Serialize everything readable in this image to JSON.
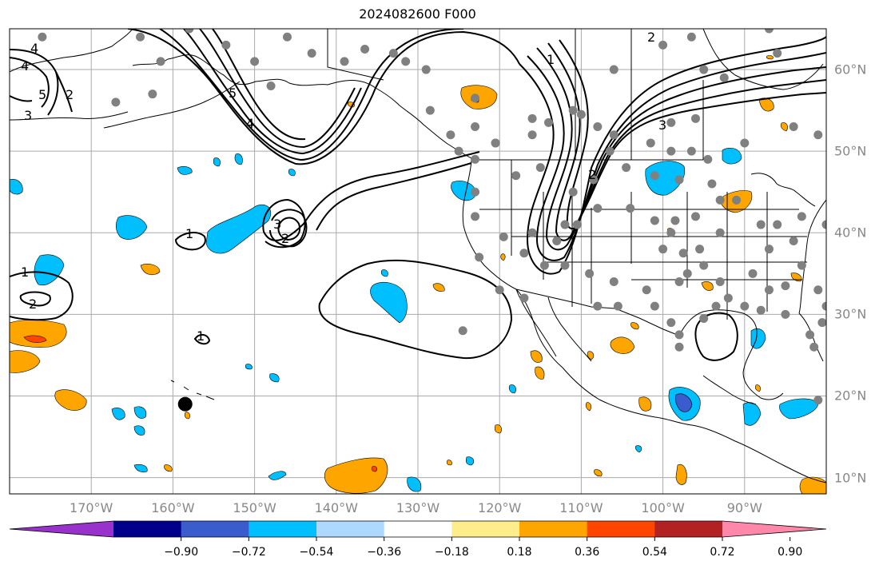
{
  "title": "2024082600 F000",
  "map": {
    "lon_range": [
      -180,
      -80
    ],
    "lat_range": [
      8,
      65
    ],
    "gridlines": true,
    "land_color": "#ffffff",
    "ocean_color": "#ffffff",
    "coastline_color": "#000000"
  },
  "lon_ticks": [
    {
      "lon": -170,
      "label": "170°W"
    },
    {
      "lon": -160,
      "label": "160°W"
    },
    {
      "lon": -150,
      "label": "150°W"
    },
    {
      "lon": -140,
      "label": "140°W"
    },
    {
      "lon": -130,
      "label": "130°W"
    },
    {
      "lon": -120,
      "label": "120°W"
    },
    {
      "lon": -110,
      "label": "110°W"
    },
    {
      "lon": -100,
      "label": "100°W"
    },
    {
      "lon": -90,
      "label": "90°W"
    }
  ],
  "lat_ticks": [
    {
      "lat": 10,
      "label": "10°N"
    },
    {
      "lat": 20,
      "label": "20°N"
    },
    {
      "lat": 30,
      "label": "30°N"
    },
    {
      "lat": 40,
      "label": "40°N"
    },
    {
      "lat": 50,
      "label": "50°N"
    },
    {
      "lat": 60,
      "label": "60°N"
    }
  ],
  "colorbar": {
    "colors": [
      "#9932cc",
      "#00008b",
      "#3a5ccc",
      "#00bfff",
      "#add8ff",
      "#ffffff",
      "#ffec8b",
      "#ffa500",
      "#ff4500",
      "#b22222",
      "#ff88aa"
    ],
    "labels": [
      "−0.90",
      "−0.72",
      "−0.54",
      "−0.36",
      "−0.18",
      "0.18",
      "0.36",
      "0.54",
      "0.72",
      "0.90"
    ],
    "values": [
      -0.9,
      -0.72,
      -0.54,
      -0.36,
      -0.18,
      0.18,
      0.36,
      0.54,
      0.72,
      0.9
    ],
    "extend": "both"
  },
  "fill_colors": {
    "orange": "#ffa500",
    "red": "#ff4500",
    "cyan": "#00bfff",
    "blue": "#3a5ccc"
  },
  "contour_labels": [
    "4",
    "4",
    "5",
    "3",
    "2",
    "5",
    "4",
    "3",
    "2",
    "1",
    "3",
    "2",
    "1",
    "1",
    "2",
    "1",
    "2"
  ],
  "stations": [
    [
      -176,
      64
    ],
    [
      -164,
      64
    ],
    [
      -161.5,
      61
    ],
    [
      -158,
      65
    ],
    [
      -162.5,
      57
    ],
    [
      -167,
      56
    ],
    [
      -153.5,
      63
    ],
    [
      -150,
      61
    ],
    [
      -146,
      64
    ],
    [
      -143,
      62
    ],
    [
      -148,
      58
    ],
    [
      -139,
      61
    ],
    [
      -136.5,
      62.5
    ],
    [
      -133,
      62
    ],
    [
      -131.5,
      61
    ],
    [
      -129,
      60
    ],
    [
      -128.5,
      55
    ],
    [
      -126,
      52
    ],
    [
      -125,
      50
    ],
    [
      -123,
      56.5
    ],
    [
      -123,
      53
    ],
    [
      -123,
      49
    ],
    [
      -120.5,
      51
    ],
    [
      -116,
      52
    ],
    [
      -115,
      48
    ],
    [
      -118,
      47
    ],
    [
      -120.5,
      51
    ],
    [
      -116,
      54
    ],
    [
      -114,
      53.5
    ],
    [
      -111,
      55
    ],
    [
      -110,
      54.5
    ],
    [
      -108,
      53
    ],
    [
      -106,
      52
    ],
    [
      -106,
      60
    ],
    [
      -100,
      63
    ],
    [
      -96.5,
      64
    ],
    [
      -87,
      65
    ],
    [
      -86,
      62
    ],
    [
      -95,
      60
    ],
    [
      -92.5,
      59
    ],
    [
      -96,
      54
    ],
    [
      -99,
      53.5
    ],
    [
      -101.5,
      51
    ],
    [
      -99,
      50
    ],
    [
      -96.5,
      50
    ],
    [
      -94.5,
      49
    ],
    [
      -90,
      51
    ],
    [
      -84,
      53
    ],
    [
      -81,
      52
    ],
    [
      -111,
      45
    ],
    [
      -108.5,
      46.5
    ],
    [
      -106.5,
      50
    ],
    [
      -104.5,
      48
    ],
    [
      -101,
      47
    ],
    [
      -98,
      46.5
    ],
    [
      -94,
      46
    ],
    [
      -93,
      44
    ],
    [
      -96,
      42
    ],
    [
      -98.5,
      41.5
    ],
    [
      -101,
      41.5
    ],
    [
      -104,
      43
    ],
    [
      -108,
      43
    ],
    [
      -110.5,
      41
    ],
    [
      -112,
      41
    ],
    [
      -113,
      39
    ],
    [
      -116,
      40
    ],
    [
      -119.5,
      39.5
    ],
    [
      -123,
      45
    ],
    [
      -123,
      42
    ],
    [
      -122.5,
      37
    ],
    [
      -117,
      37.5
    ],
    [
      -114.5,
      36
    ],
    [
      -112,
      36
    ],
    [
      -109,
      35
    ],
    [
      -106,
      34
    ],
    [
      -108,
      31
    ],
    [
      -105.5,
      31
    ],
    [
      -102,
      33
    ],
    [
      -101,
      31
    ],
    [
      -99,
      29
    ],
    [
      -98,
      34
    ],
    [
      -97,
      35
    ],
    [
      -95,
      36
    ],
    [
      -95.5,
      38
    ],
    [
      -97.5,
      37.5
    ],
    [
      -100,
      38
    ],
    [
      -99,
      40
    ],
    [
      -93,
      40
    ],
    [
      -91,
      44
    ],
    [
      -88,
      41
    ],
    [
      -86,
      41
    ],
    [
      -83,
      42
    ],
    [
      -84,
      39
    ],
    [
      -87,
      38
    ],
    [
      -89,
      35
    ],
    [
      -87,
      33
    ],
    [
      -85,
      33.5
    ],
    [
      -83,
      36
    ],
    [
      -81,
      33
    ],
    [
      -80,
      31
    ],
    [
      -81.5,
      26
    ],
    [
      -80.5,
      29
    ],
    [
      -82,
      27.5
    ],
    [
      -85,
      30
    ],
    [
      -88,
      30.5
    ],
    [
      -90,
      31
    ],
    [
      -92,
      32
    ],
    [
      -93,
      34
    ],
    [
      -93.5,
      31
    ],
    [
      -95,
      29.5
    ],
    [
      -98,
      26
    ],
    [
      -98,
      27.5
    ],
    [
      -80,
      41
    ],
    [
      -79.5,
      44.5
    ],
    [
      -79,
      47
    ],
    [
      -81,
      19.5
    ],
    [
      -120,
      33
    ],
    [
      -117,
      32
    ],
    [
      -124.5,
      28
    ]
  ],
  "hawaii_point": [
    -158.5,
    19
  ]
}
